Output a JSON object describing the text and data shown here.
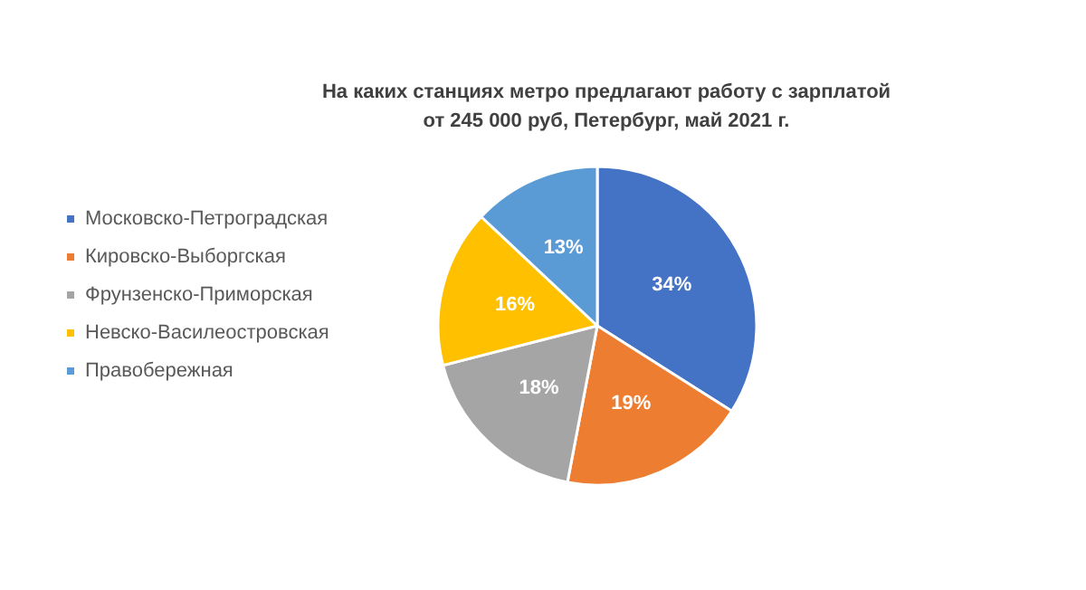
{
  "chart_data": {
    "type": "pie",
    "title": "На каких станциях метро предлагают работу с зарплатой\nот 245 000 руб, Петербург, май 2021 г.",
    "categories": [
      "Московско-Петроградская",
      "Кировско-Выборгская",
      "Фрунзенско-Приморская",
      "Невско-Василеостровская",
      "Правобережная"
    ],
    "values": [
      34,
      19,
      18,
      16,
      13
    ],
    "colors": [
      "#4472c4",
      "#ed7d31",
      "#a5a5a5",
      "#ffc000",
      "#5b9bd5"
    ],
    "value_labels": [
      "34%",
      "19%",
      "18%",
      "16%",
      "13%"
    ],
    "legend": "left"
  }
}
